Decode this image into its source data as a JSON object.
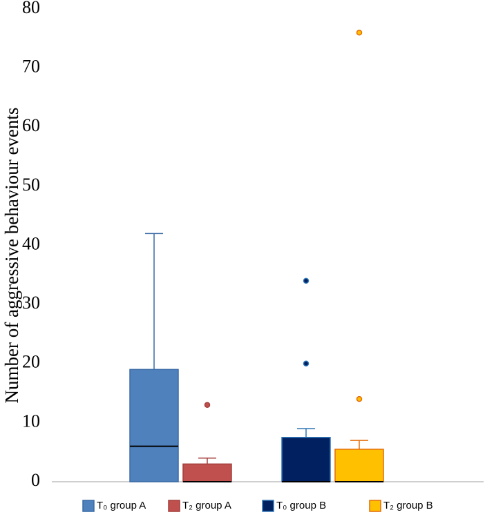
{
  "chart_data": {
    "type": "box",
    "ylabel": "Number of aggressive behaviour events",
    "ylim": [
      0,
      80
    ],
    "yticks": [
      0,
      10,
      20,
      30,
      40,
      50,
      60,
      70,
      80
    ],
    "legend": "bottom",
    "series": [
      {
        "name": "T₀ group A",
        "color": "#4f81bd",
        "edgecolor": "#3a6aa6",
        "min": 0,
        "q1": 0,
        "median": 6,
        "q3": 19,
        "max": 42,
        "outliers": []
      },
      {
        "name": "T₂ group A",
        "color": "#c0504d",
        "edgecolor": "#a33f3c",
        "min": 0,
        "q1": 0,
        "median": 0,
        "q3": 3,
        "max": 4,
        "outliers": [
          13
        ]
      },
      {
        "name": "T₀ group B",
        "color": "#002060",
        "edgecolor": "#2e75b6",
        "min": 0,
        "q1": 0,
        "median": 0,
        "q3": 7.5,
        "max": 9,
        "outliers": [
          20,
          34
        ]
      },
      {
        "name": "T₂ group B",
        "color": "#ffc000",
        "edgecolor": "#e46c0a",
        "min": 0,
        "q1": 0,
        "median": 0,
        "q3": 5.5,
        "max": 7,
        "outliers": [
          14,
          76
        ]
      }
    ]
  }
}
